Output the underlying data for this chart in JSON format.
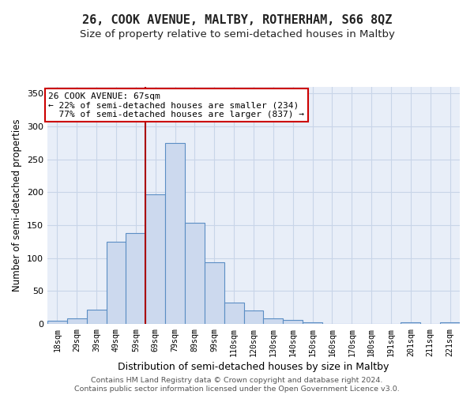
{
  "title": "26, COOK AVENUE, MALTBY, ROTHERHAM, S66 8QZ",
  "subtitle": "Size of property relative to semi-detached houses in Maltby",
  "xlabel": "Distribution of semi-detached houses by size in Maltby",
  "ylabel": "Number of semi-detached properties",
  "categories": [
    "18sqm",
    "29sqm",
    "39sqm",
    "49sqm",
    "59sqm",
    "69sqm",
    "79sqm",
    "89sqm",
    "99sqm",
    "110sqm",
    "120sqm",
    "130sqm",
    "140sqm",
    "150sqm",
    "160sqm",
    "170sqm",
    "180sqm",
    "191sqm",
    "201sqm",
    "211sqm",
    "221sqm"
  ],
  "values": [
    5,
    8,
    22,
    125,
    138,
    197,
    275,
    154,
    94,
    33,
    20,
    8,
    6,
    3,
    0,
    0,
    0,
    0,
    3,
    0,
    3
  ],
  "bar_color": "#ccd9ee",
  "bar_edge_color": "#5b8ec4",
  "vline_color": "#aa0000",
  "vline_x_index": 5,
  "annotation_text": "26 COOK AVENUE: 67sqm\n← 22% of semi-detached houses are smaller (234)\n  77% of semi-detached houses are larger (837) →",
  "annotation_box_color": "#ffffff",
  "annotation_box_edge": "#cc0000",
  "ylim": [
    0,
    360
  ],
  "yticks": [
    0,
    50,
    100,
    150,
    200,
    250,
    300,
    350
  ],
  "grid_color": "#c8d5e8",
  "background_color": "#e8eef8",
  "footer_line1": "Contains HM Land Registry data © Crown copyright and database right 2024.",
  "footer_line2": "Contains public sector information licensed under the Open Government Licence v3.0.",
  "title_fontsize": 11,
  "subtitle_fontsize": 9.5
}
